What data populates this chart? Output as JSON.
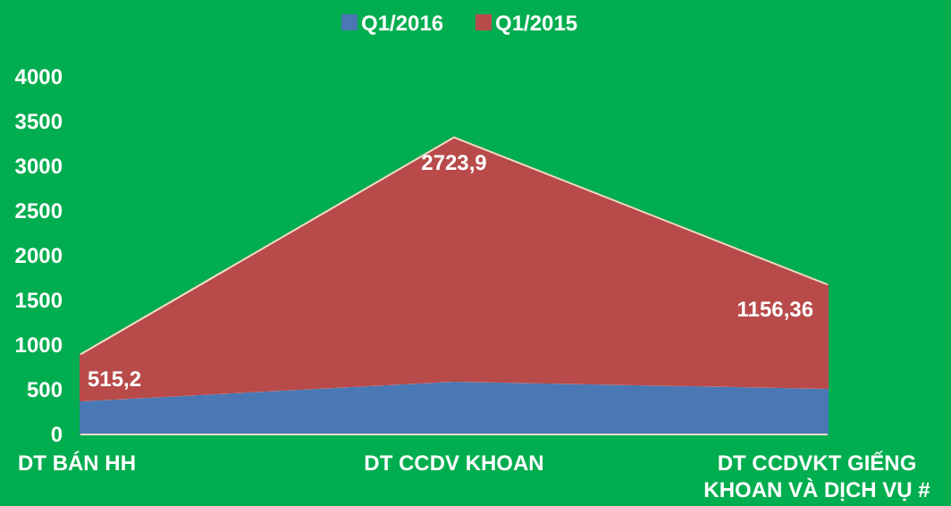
{
  "chart_data": {
    "type": "area",
    "stacked": true,
    "categories": [
      "DT BÁN HH",
      "DT CCDV KHOAN",
      "DT CCDVKT GIẾNG KHOAN VÀ DỊCH VỤ #"
    ],
    "series": [
      {
        "name": "Q1/2016",
        "color": "#4a78b5",
        "values": [
          380,
          600,
          520
        ]
      },
      {
        "name": "Q1/2015",
        "color": "#b84a4a",
        "values": [
          515.2,
          2723.9,
          1156.36
        ],
        "value_labels": [
          "515,2",
          "2723,9",
          "1156,36"
        ]
      }
    ],
    "ylim": [
      0,
      4000
    ],
    "yticks": [
      0,
      500,
      1000,
      1500,
      2000,
      2500,
      3000,
      3500,
      4000
    ],
    "grid": false,
    "legend": "top"
  }
}
